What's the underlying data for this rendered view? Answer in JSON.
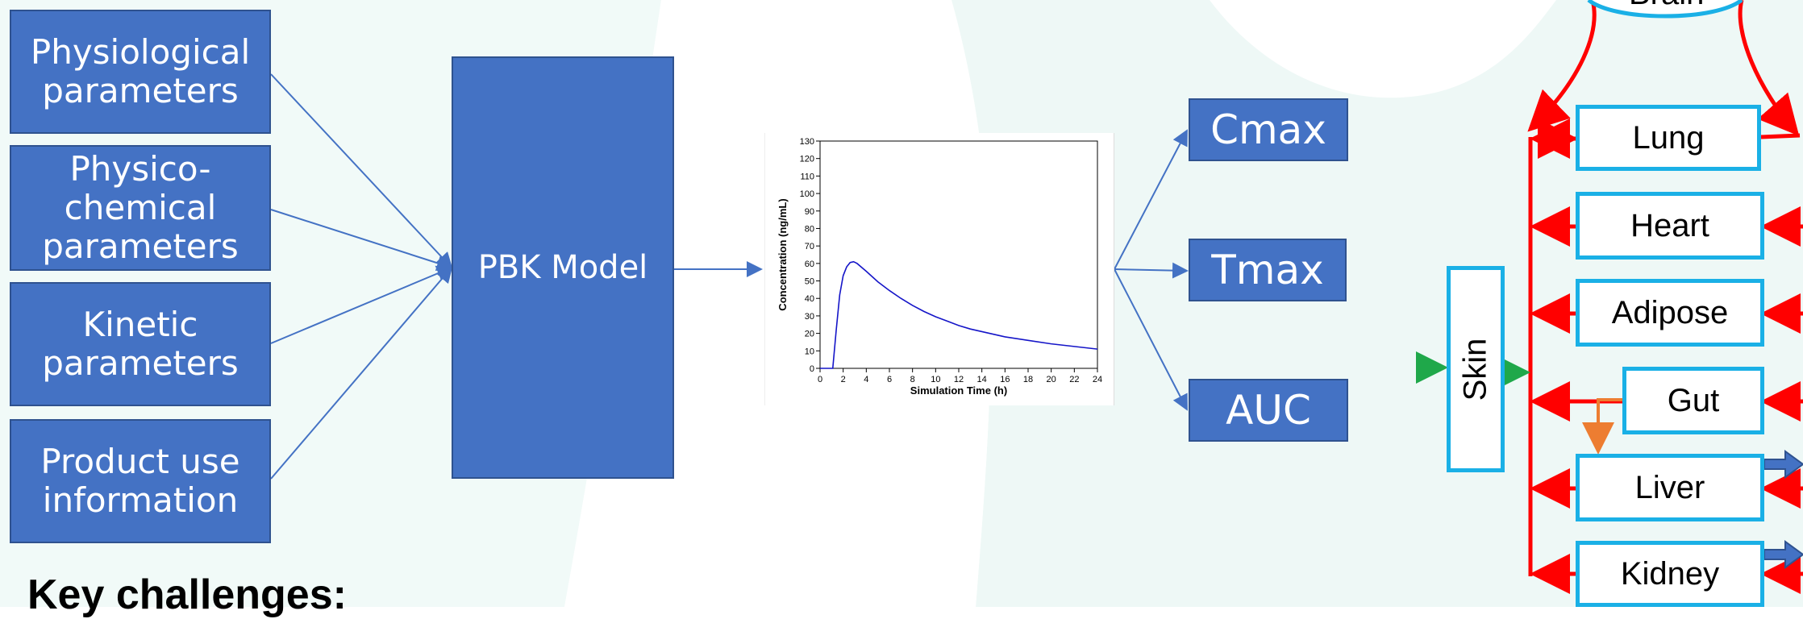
{
  "inputs": [
    {
      "line1": "Physiological",
      "line2": "parameters",
      "line3": ""
    },
    {
      "line1": "Physico-",
      "line2": "chemical",
      "line3": "parameters"
    },
    {
      "line1": "Kinetic",
      "line2": "parameters",
      "line3": ""
    },
    {
      "line1": "Product use",
      "line2": "information",
      "line3": ""
    }
  ],
  "model_label": "PBK Model",
  "outputs": [
    "Cmax",
    "Tmax",
    "AUC"
  ],
  "organs": {
    "brain": "Brain",
    "lung": "Lung",
    "heart": "Heart",
    "adipose": "Adipose",
    "gut": "Gut",
    "liver": "Liver",
    "kidney": "Kidney",
    "skin": "Skin"
  },
  "key_challenges_label": "Key challenges:",
  "colors": {
    "box_fill": "#4472c4",
    "organ_border": "#1ab0e6",
    "blood_flow": "#ff0000",
    "skin_input": "#1fa84a",
    "portal": "#ed7d31"
  },
  "chart_data": {
    "type": "line",
    "xlabel": "Simulation Time (h)",
    "ylabel": "Concentration (ng/mL)",
    "xlim": [
      0,
      24
    ],
    "ylim": [
      0,
      130
    ],
    "xticks": [
      0,
      2,
      4,
      6,
      8,
      10,
      12,
      14,
      16,
      18,
      20,
      22,
      24
    ],
    "yticks": [
      0,
      10,
      20,
      30,
      40,
      50,
      60,
      70,
      80,
      90,
      100,
      110,
      120,
      130
    ],
    "series": [
      {
        "name": "",
        "x": [
          0,
          1.1,
          1.4,
          1.7,
          2.0,
          2.3,
          2.6,
          2.9,
          3.2,
          4,
          5,
          6,
          7,
          8,
          9,
          10,
          11,
          12,
          13,
          14,
          16,
          18,
          20,
          22,
          24
        ],
        "y": [
          0,
          0,
          22,
          42,
          53,
          58,
          60.5,
          61,
          60,
          55.5,
          49.5,
          44.5,
          40,
          36,
          32.5,
          29.5,
          27,
          24.5,
          22.5,
          21,
          18,
          16,
          14,
          12.5,
          11
        ]
      }
    ]
  }
}
